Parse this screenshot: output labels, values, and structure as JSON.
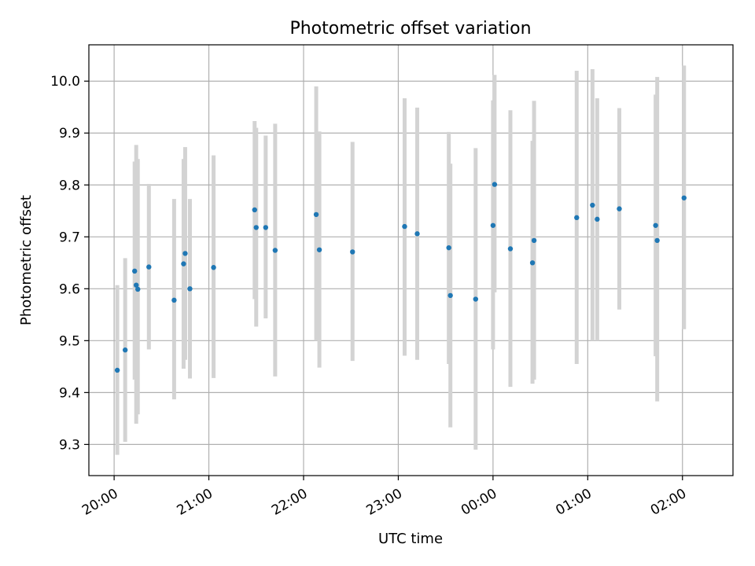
{
  "chart_data": {
    "type": "scatter",
    "title": "Photometric offset variation",
    "xlabel": "UTC time",
    "ylabel": "Photometric offset",
    "x_format": "HH:MM",
    "x_note": "x values are UTC clock times; times after midnight fall on the following day",
    "xlim": [
      "19:44",
      "02:32"
    ],
    "ylim": [
      9.24,
      10.07
    ],
    "x_ticks": [
      "20:00",
      "21:00",
      "22:00",
      "23:00",
      "00:00",
      "01:00",
      "02:00"
    ],
    "y_ticks": [
      "9.3",
      "9.4",
      "9.5",
      "9.6",
      "9.7",
      "9.8",
      "9.9",
      "10.0"
    ],
    "grid": true,
    "colors": {
      "marker": "#1f77b4",
      "errorbar": "#d3d3d3",
      "grid": "#b0b0b0"
    },
    "points": [
      {
        "x": "20:02",
        "y": 9.443,
        "lo": 9.28,
        "hi": 9.607
      },
      {
        "x": "20:07",
        "y": 9.482,
        "lo": 9.305,
        "hi": 9.659
      },
      {
        "x": "20:13",
        "y": 9.634,
        "lo": 9.425,
        "hi": 9.845
      },
      {
        "x": "20:14",
        "y": 9.607,
        "lo": 9.34,
        "hi": 9.877
      },
      {
        "x": "20:15",
        "y": 9.599,
        "lo": 9.358,
        "hi": 9.85
      },
      {
        "x": "20:22",
        "y": 9.642,
        "lo": 9.483,
        "hi": 9.802
      },
      {
        "x": "20:38",
        "y": 9.578,
        "lo": 9.387,
        "hi": 9.773
      },
      {
        "x": "20:44",
        "y": 9.648,
        "lo": 9.446,
        "hi": 9.85
      },
      {
        "x": "20:45",
        "y": 9.668,
        "lo": 9.463,
        "hi": 9.873
      },
      {
        "x": "20:48",
        "y": 9.6,
        "lo": 9.427,
        "hi": 9.773
      },
      {
        "x": "21:03",
        "y": 9.641,
        "lo": 9.428,
        "hi": 9.857
      },
      {
        "x": "21:29",
        "y": 9.752,
        "lo": 9.58,
        "hi": 9.923
      },
      {
        "x": "21:30",
        "y": 9.718,
        "lo": 9.527,
        "hi": 9.91
      },
      {
        "x": "21:36",
        "y": 9.718,
        "lo": 9.543,
        "hi": 9.895
      },
      {
        "x": "21:42",
        "y": 9.674,
        "lo": 9.431,
        "hi": 9.918
      },
      {
        "x": "22:08",
        "y": 9.743,
        "lo": 9.5,
        "hi": 9.99
      },
      {
        "x": "22:10",
        "y": 9.675,
        "lo": 9.448,
        "hi": 9.903
      },
      {
        "x": "22:31",
        "y": 9.671,
        "lo": 9.461,
        "hi": 9.883
      },
      {
        "x": "23:04",
        "y": 9.72,
        "lo": 9.471,
        "hi": 9.967
      },
      {
        "x": "23:12",
        "y": 9.706,
        "lo": 9.463,
        "hi": 9.949
      },
      {
        "x": "23:32",
        "y": 9.679,
        "lo": 9.455,
        "hi": 9.902
      },
      {
        "x": "23:33",
        "y": 9.587,
        "lo": 9.333,
        "hi": 9.841
      },
      {
        "x": "23:49",
        "y": 9.58,
        "lo": 9.29,
        "hi": 9.871
      },
      {
        "x": "00:00",
        "y": 9.722,
        "lo": 9.483,
        "hi": 9.963
      },
      {
        "x": "00:01",
        "y": 9.801,
        "lo": 9.593,
        "hi": 10.012
      },
      {
        "x": "00:11",
        "y": 9.677,
        "lo": 9.411,
        "hi": 9.944
      },
      {
        "x": "00:25",
        "y": 9.65,
        "lo": 9.417,
        "hi": 9.885
      },
      {
        "x": "00:26",
        "y": 9.693,
        "lo": 9.425,
        "hi": 9.962
      },
      {
        "x": "00:53",
        "y": 9.737,
        "lo": 9.455,
        "hi": 10.02
      },
      {
        "x": "01:03",
        "y": 9.761,
        "lo": 9.5,
        "hi": 10.023
      },
      {
        "x": "01:06",
        "y": 9.734,
        "lo": 9.5,
        "hi": 9.967
      },
      {
        "x": "01:20",
        "y": 9.754,
        "lo": 9.56,
        "hi": 9.948
      },
      {
        "x": "01:43",
        "y": 9.722,
        "lo": 9.47,
        "hi": 9.974
      },
      {
        "x": "01:44",
        "y": 9.693,
        "lo": 9.383,
        "hi": 10.008
      },
      {
        "x": "02:01",
        "y": 9.775,
        "lo": 9.522,
        "hi": 10.03
      }
    ]
  }
}
